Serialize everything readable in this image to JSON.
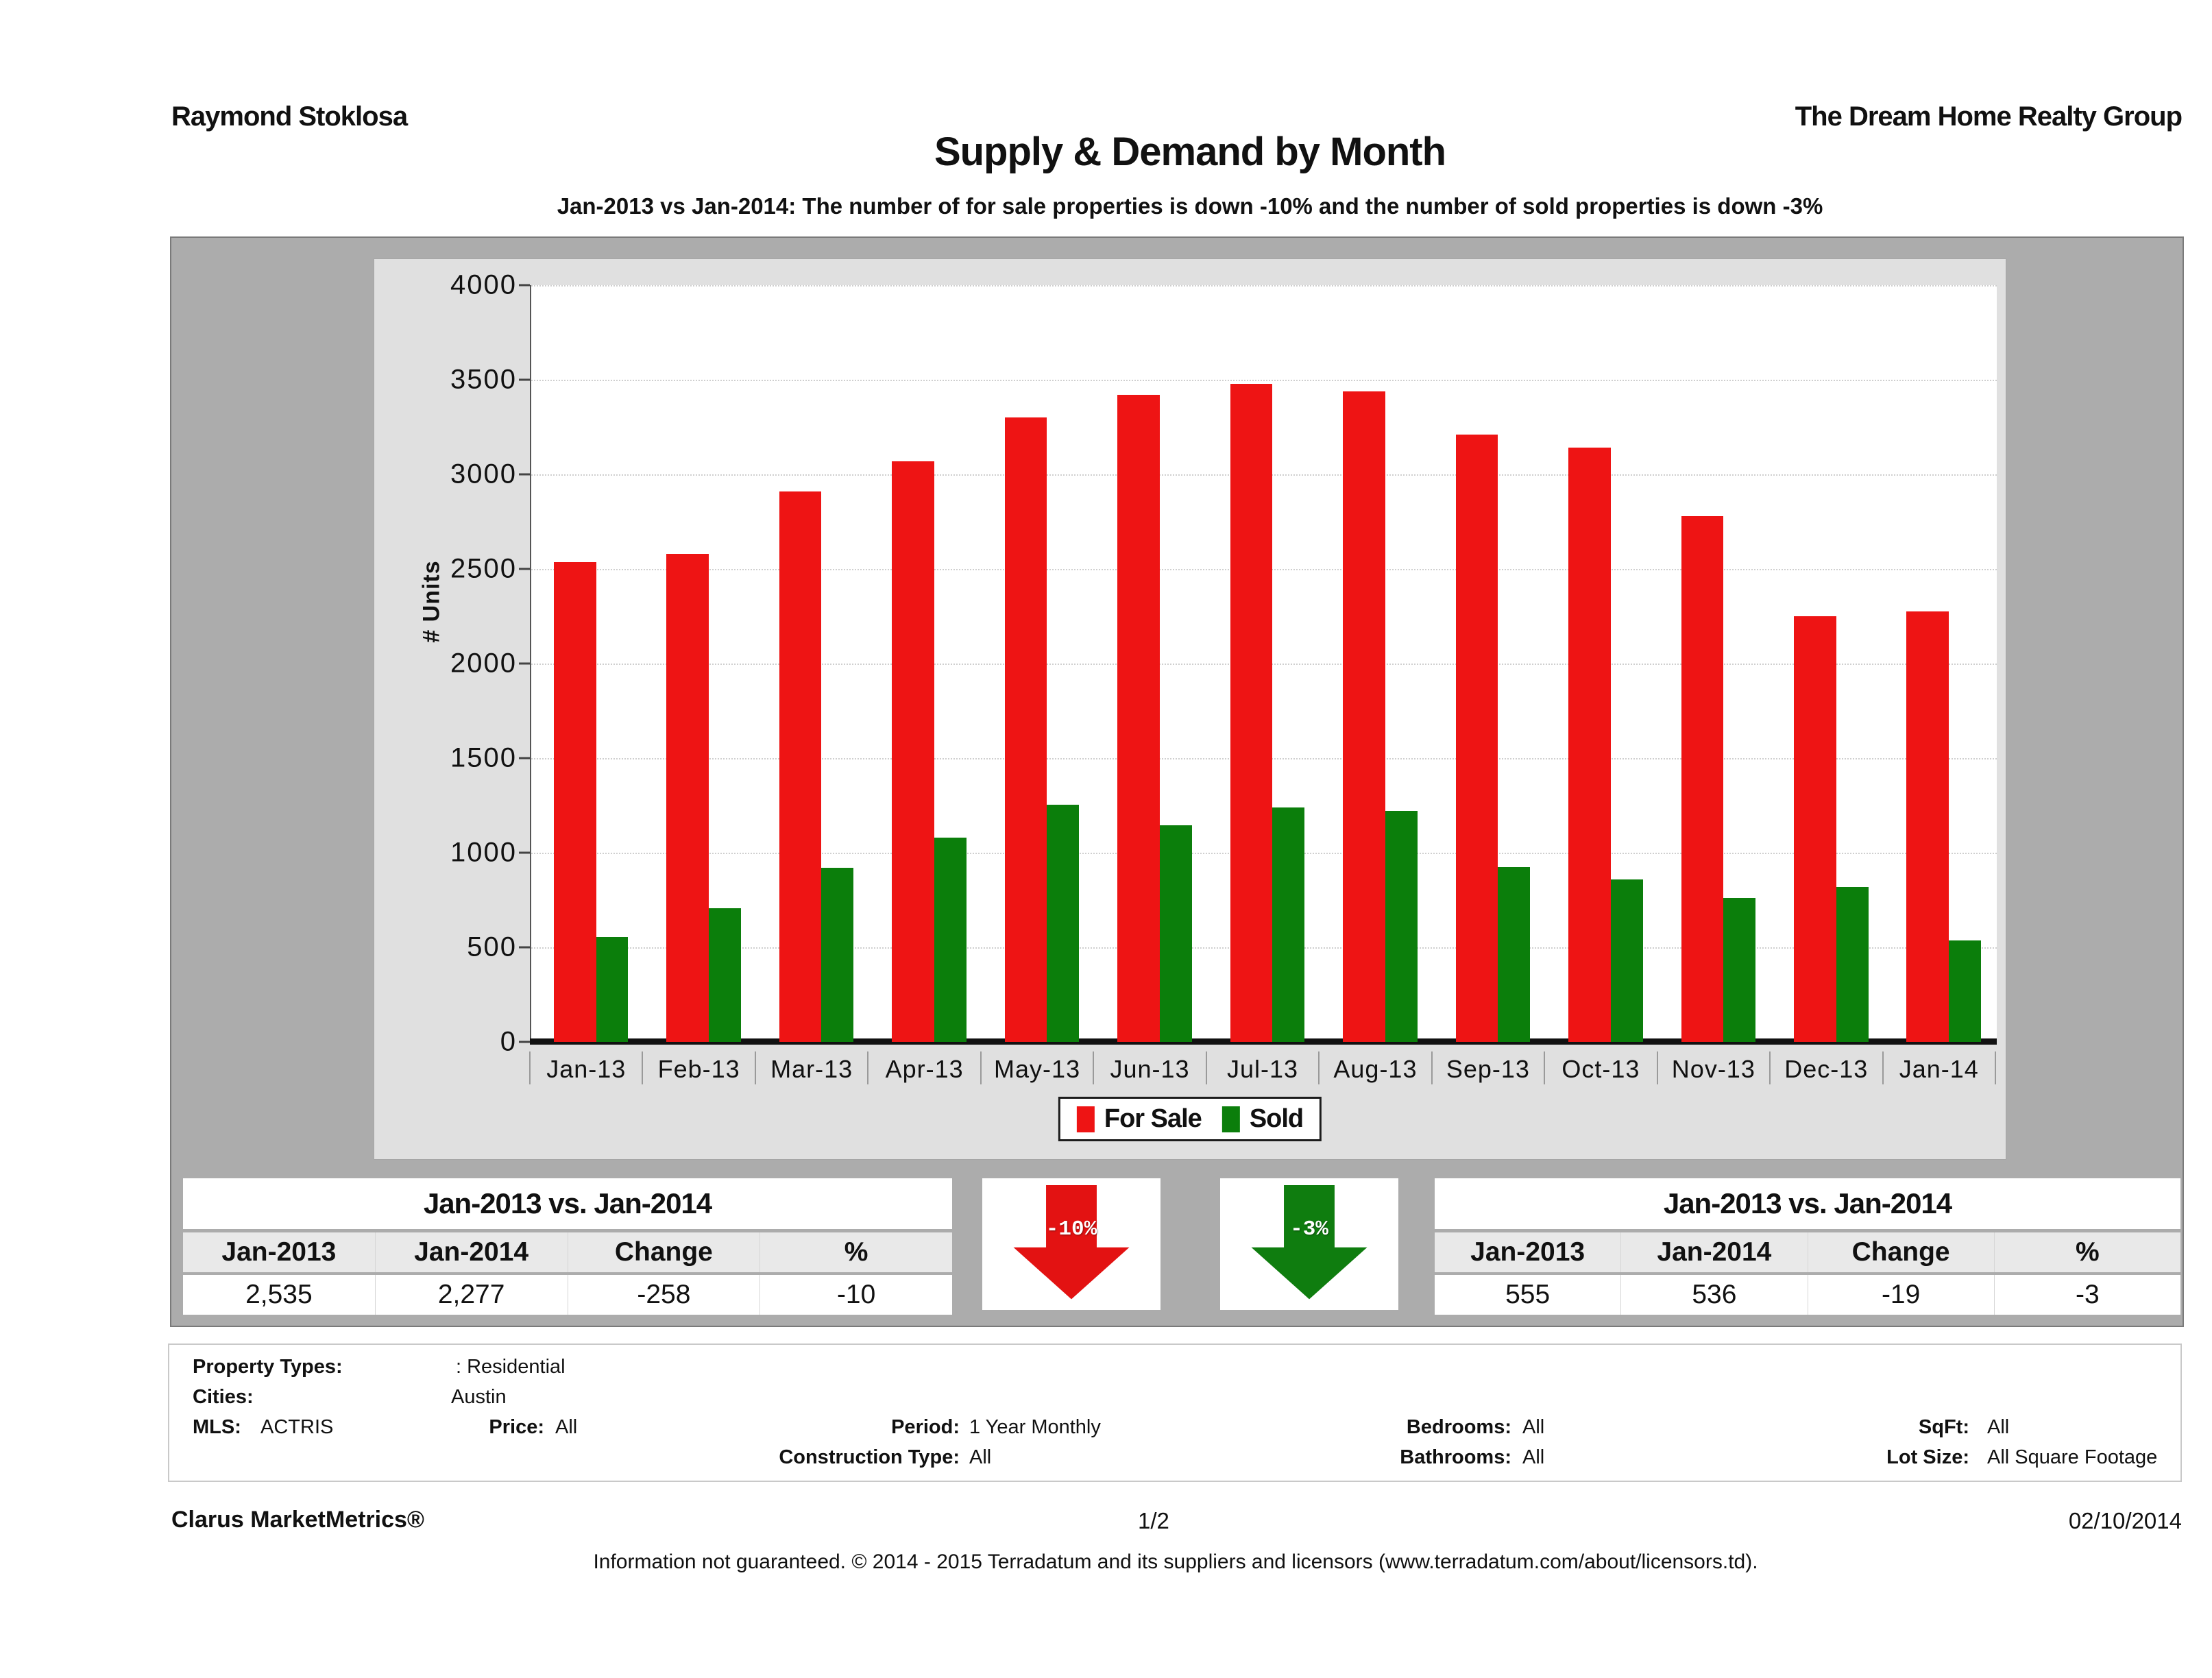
{
  "header": {
    "agent": "Raymond Stoklosa",
    "company": "The Dream Home Realty Group"
  },
  "title": "Supply & Demand by Month",
  "subtitle": "Jan-2013 vs Jan-2014: The number of for sale properties is down -10% and the number of sold properties is down -3%",
  "chart_data": {
    "type": "bar",
    "categories": [
      "Jan-13",
      "Feb-13",
      "Mar-13",
      "Apr-13",
      "May-13",
      "Jun-13",
      "Jul-13",
      "Aug-13",
      "Sep-13",
      "Oct-13",
      "Nov-13",
      "Dec-13",
      "Jan-14"
    ],
    "series": [
      {
        "name": "For Sale",
        "color": "#ee1414",
        "values": [
          2535,
          2580,
          2910,
          3070,
          3300,
          3420,
          3480,
          3440,
          3210,
          3140,
          2780,
          2250,
          2277
        ]
      },
      {
        "name": "Sold",
        "color": "#0b7e0b",
        "values": [
          555,
          705,
          920,
          1080,
          1255,
          1145,
          1240,
          1220,
          925,
          860,
          760,
          820,
          536
        ]
      }
    ],
    "xlabel": "",
    "ylabel": "# Units",
    "ylim": [
      0,
      4000
    ],
    "ytick_step": 500,
    "grid": true,
    "legend_position": "bottom"
  },
  "comparison_for_sale": {
    "title": "Jan-2013 vs. Jan-2014",
    "headers": [
      "Jan-2013",
      "Jan-2014",
      "Change",
      "%"
    ],
    "values": [
      "2,535",
      "2,277",
      "-258",
      "-10"
    ]
  },
  "comparison_sold": {
    "title": "Jan-2013 vs. Jan-2014",
    "headers": [
      "Jan-2013",
      "Jan-2014",
      "Change",
      "%"
    ],
    "values": [
      "555",
      "536",
      "-19",
      "-3"
    ]
  },
  "arrows": [
    {
      "label": "-10%",
      "color": "#e31212"
    },
    {
      "label": "-3%",
      "color": "#0f7d0f"
    }
  ],
  "criteria": {
    "property_types_label": "Property Types:",
    "property_types_value": ": Residential",
    "cities_label": "Cities:",
    "cities_value": "Austin",
    "mls_label": "MLS:",
    "mls_value": "ACTRIS",
    "price_label": "Price:",
    "price_value": "All",
    "period_label": "Period:",
    "period_value": "1 Year Monthly",
    "construction_label": "Construction Type:",
    "construction_value": "All",
    "bedrooms_label": "Bedrooms:",
    "bedrooms_value": "All",
    "bathrooms_label": "Bathrooms:",
    "bathrooms_value": "All",
    "sqft_label": "SqFt:",
    "sqft_value": "All",
    "lotsize_label": "Lot Size:",
    "lotsize_value": "All Square Footage"
  },
  "footer": {
    "brand": "Clarus MarketMetrics®",
    "page": "1/2",
    "date": "02/10/2014",
    "disclaimer": "Information not guaranteed. © 2014 - 2015 Terradatum and its suppliers and licensors (www.terradatum.com/about/licensors.td)."
  }
}
